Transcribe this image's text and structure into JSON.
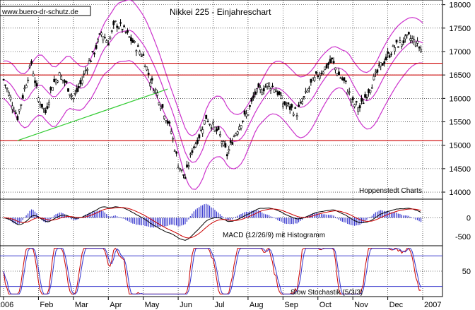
{
  "chart_data": [
    {
      "type": "candlestick",
      "title": "Nikkei 225 - Einjahreschart",
      "watermark": "www.buero-dr-schutz.de",
      "credit": "Hoppenstedt Charts",
      "y_ticks": [
        14000,
        14500,
        15000,
        15500,
        16000,
        16500,
        17000,
        17500,
        18000
      ],
      "ylim": [
        13850,
        18100
      ],
      "x_labels": [
        "2006",
        "Feb",
        "Mar",
        "Apr",
        "May",
        "Jun",
        "Jul",
        "Aug",
        "Sep",
        "Oct",
        "Nov",
        "Dec",
        "2007"
      ],
      "x_range_months": [
        0,
        12
      ],
      "close_series": {
        "x": [
          0,
          0.2,
          0.4,
          0.6,
          0.8,
          1.0,
          1.2,
          1.4,
          1.6,
          1.8,
          2.0,
          2.2,
          2.4,
          2.6,
          2.8,
          3.0,
          3.2,
          3.4,
          3.6,
          3.8,
          4.0,
          4.2,
          4.4,
          4.6,
          4.8,
          5.0,
          5.2,
          5.4,
          5.6,
          5.8,
          6.0,
          6.2,
          6.4,
          6.6,
          6.8,
          7.0,
          7.2,
          7.4,
          7.6,
          7.8,
          8.0,
          8.2,
          8.4,
          8.6,
          8.8,
          9.0,
          9.2,
          9.4,
          9.6,
          9.8,
          10.0,
          10.2,
          10.4,
          10.6,
          10.8,
          11.0,
          11.2,
          11.4,
          11.6,
          11.8,
          12.0
        ],
        "y": [
          16400,
          16000,
          15600,
          16200,
          16750,
          16000,
          15700,
          16300,
          16500,
          16300,
          16000,
          16300,
          16700,
          17000,
          17400,
          17200,
          17600,
          17500,
          17300,
          17100,
          16900,
          16400,
          16100,
          15700,
          15300,
          14600,
          14300,
          14900,
          15200,
          15600,
          15400,
          15200,
          14800,
          15200,
          15500,
          15700,
          16100,
          16200,
          16300,
          16200,
          15900,
          15800,
          15700,
          16000,
          16300,
          16500,
          16650,
          16800,
          16500,
          16300,
          15900,
          15800,
          16100,
          16400,
          16700,
          16900,
          17100,
          17200,
          17300,
          17200,
          17000
        ]
      },
      "horizontal_lines": [
        {
          "y": 16750,
          "color": "#cc0000"
        },
        {
          "y": 16500,
          "color": "#cc0000"
        },
        {
          "y": 15100,
          "color": "#cc0000"
        }
      ],
      "trendline": {
        "x": [
          0.4,
          4.7
        ],
        "y": [
          15100,
          16200
        ],
        "color": "#33cc33"
      },
      "bands": {
        "color": "#cc33cc",
        "width": 500
      }
    },
    {
      "type": "bar",
      "subtitle": "MACD (12/26/9) mit Histogramm",
      "y_ticks": [
        0,
        -500
      ],
      "ylim": [
        -750,
        500
      ]
    },
    {
      "type": "line",
      "subtitle": "Slow Stochastik (5/3/3)",
      "y_ticks": [
        50
      ],
      "levels": [
        80,
        20
      ],
      "ylim": [
        0,
        100
      ]
    }
  ]
}
